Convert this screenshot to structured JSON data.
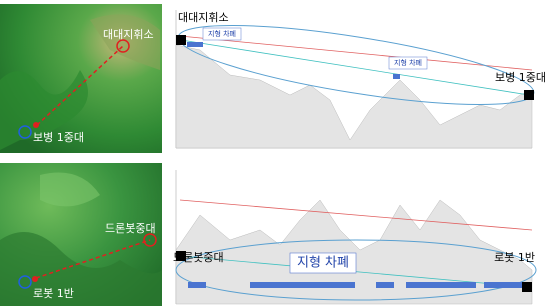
{
  "panels": [
    {
      "map": {
        "start_label": "대대지휘소",
        "end_label": "보병 1중대"
      },
      "profile": {
        "left_label": "대대지휘소",
        "right_label": "보병 1중대",
        "mask_labels": [
          "지형 차폐",
          "지형 차폐"
        ]
      }
    },
    {
      "map": {
        "start_label": "드론봇중대",
        "end_label": "로봇 1반"
      },
      "profile": {
        "left_label": "드론봇중대",
        "right_label": "로봇 1반",
        "mask_labels": [
          "지형 차폐"
        ]
      }
    }
  ]
}
